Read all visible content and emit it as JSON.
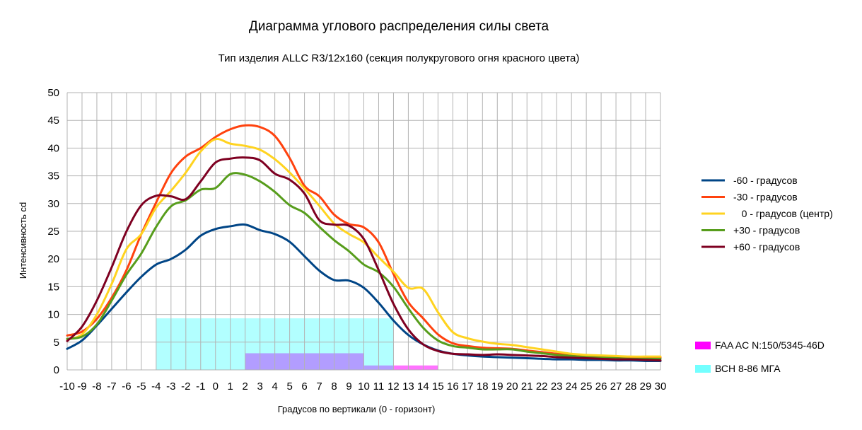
{
  "chart_data": {
    "type": "line",
    "title": "Диаграмма углового распределения силы света",
    "subtitle": "Тип изделия ALLC R3/12x160 (секция полукругового огня красного цвета)",
    "xlabel": "Градусов по вертикали (0 - горизонт)",
    "ylabel": "Интенсивность cd",
    "xlim": [
      -10,
      30
    ],
    "ylim": [
      0,
      50
    ],
    "yticks": [
      0,
      5,
      10,
      15,
      20,
      25,
      30,
      35,
      40,
      45,
      50
    ],
    "x": [
      -10,
      -9,
      -8,
      -7,
      -6,
      -5,
      -4,
      -3,
      -2,
      -1,
      0,
      1,
      2,
      3,
      4,
      5,
      6,
      7,
      8,
      9,
      10,
      11,
      12,
      13,
      14,
      15,
      16,
      17,
      18,
      19,
      20,
      21,
      22,
      23,
      24,
      25,
      26,
      27,
      28,
      29,
      30
    ],
    "grid": true,
    "legend_position": "right",
    "series": [
      {
        "name": "-60 - градусов",
        "color": "#004586",
        "values": [
          3.8,
          5.3,
          8.0,
          11.0,
          14.0,
          16.8,
          19.0,
          20.0,
          21.7,
          24.2,
          25.4,
          25.9,
          26.2,
          25.2,
          24.5,
          23.1,
          20.5,
          17.9,
          16.2,
          16.1,
          14.8,
          12.1,
          8.9,
          6.3,
          4.6,
          3.5,
          2.9,
          2.6,
          2.4,
          2.3,
          2.2,
          2.1,
          2.0,
          1.9,
          1.9,
          1.8,
          1.8,
          1.7,
          1.7,
          1.6,
          1.6
        ]
      },
      {
        "name": "-30 - градусов",
        "color": "#ff420e",
        "values": [
          6.2,
          6.9,
          9.2,
          13.0,
          18.0,
          24.5,
          30.2,
          35.5,
          38.5,
          40.0,
          42.0,
          43.4,
          44.1,
          43.8,
          42.2,
          38.2,
          33.2,
          31.3,
          28.0,
          26.3,
          25.7,
          23.0,
          17.3,
          12.2,
          9.3,
          6.4,
          4.8,
          4.3,
          4.0,
          3.9,
          3.8,
          3.5,
          3.2,
          2.9,
          2.7,
          2.6,
          2.5,
          2.4,
          2.3,
          2.3,
          2.2
        ]
      },
      {
        "name": "   0 - градусов (центр)",
        "color": "#ffd320",
        "values": [
          5.5,
          6.4,
          10.0,
          15.5,
          21.8,
          24.5,
          29.3,
          32.3,
          35.6,
          39.4,
          41.6,
          40.8,
          40.4,
          39.7,
          38.0,
          35.6,
          32.7,
          29.6,
          26.4,
          24.5,
          23.0,
          20.3,
          17.7,
          14.8,
          14.6,
          10.4,
          6.8,
          5.7,
          5.1,
          4.7,
          4.5,
          4.1,
          3.7,
          3.3,
          2.9,
          2.7,
          2.6,
          2.5,
          2.4,
          2.4,
          2.4
        ]
      },
      {
        "name": "+30 - градусов",
        "color": "#579d1c",
        "values": [
          5.6,
          6.0,
          8.2,
          12.5,
          17.2,
          21.0,
          25.8,
          29.5,
          30.6,
          32.5,
          32.8,
          35.3,
          35.2,
          34.0,
          32.1,
          29.7,
          28.3,
          25.8,
          23.4,
          21.4,
          19.0,
          17.6,
          15.0,
          11.1,
          7.6,
          5.3,
          4.3,
          4.0,
          3.7,
          3.7,
          3.7,
          3.3,
          3.0,
          2.7,
          2.5,
          2.3,
          2.2,
          2.1,
          2.0,
          2.0,
          2.0
        ]
      },
      {
        "name": "+60 - градусов",
        "color": "#7e0021",
        "values": [
          5.2,
          7.8,
          12.5,
          18.5,
          25.0,
          29.7,
          31.4,
          31.3,
          30.8,
          34.0,
          37.4,
          38.1,
          38.3,
          37.8,
          35.4,
          34.3,
          31.8,
          27.0,
          26.2,
          26.0,
          23.6,
          18.0,
          11.9,
          7.3,
          4.6,
          3.4,
          2.9,
          2.8,
          2.7,
          2.8,
          2.7,
          2.6,
          2.5,
          2.3,
          2.2,
          2.1,
          2.0,
          1.9,
          1.9,
          1.8,
          1.7
        ]
      }
    ],
    "regions": [
      {
        "name": "FAA AC N:150/5345-46D",
        "color": "#ff00ff",
        "opacity": 0.55,
        "rects": [
          {
            "x1": 2,
            "x2": 10,
            "y1": 0,
            "y2": 3
          },
          {
            "x1": 10,
            "x2": 15,
            "y1": 0,
            "y2": 0.8
          }
        ]
      },
      {
        "name": "ВСН 8-86 МГА",
        "color": "#00ffff",
        "opacity": 0.3,
        "rects": [
          {
            "x1": -4,
            "x2": 12,
            "y1": 0,
            "y2": 9.3
          }
        ]
      }
    ]
  }
}
